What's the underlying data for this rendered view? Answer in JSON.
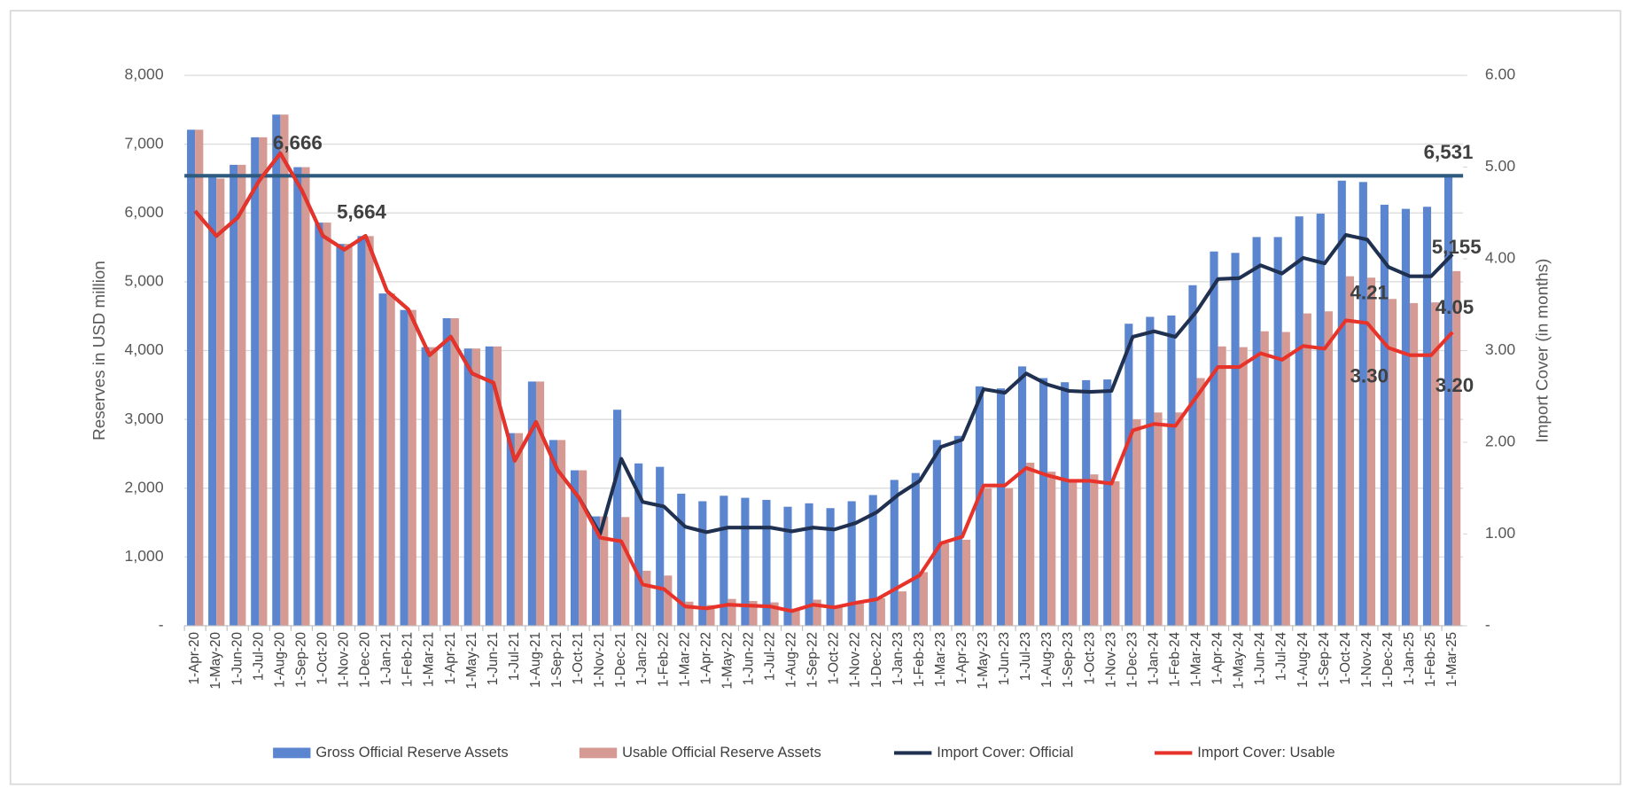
{
  "chart_data": {
    "type": "bar",
    "y_label": "Reserves in USD million",
    "y2_label": "Import Cover (in months)",
    "categories": [
      "1-Apr-20",
      "1-May-20",
      "1-Jun-20",
      "1-Jul-20",
      "1-Aug-20",
      "1-Sep-20",
      "1-Oct-20",
      "1-Nov-20",
      "1-Dec-20",
      "1-Jan-21",
      "1-Feb-21",
      "1-Mar-21",
      "1-Apr-21",
      "1-May-21",
      "1-Jun-21",
      "1-Jul-21",
      "1-Aug-21",
      "1-Sep-21",
      "1-Oct-21",
      "1-Nov-21",
      "1-Dec-21",
      "1-Jan-22",
      "1-Feb-22",
      "1-Mar-22",
      "1-Apr-22",
      "1-May-22",
      "1-Jun-22",
      "1-Jul-22",
      "1-Aug-22",
      "1-Sep-22",
      "1-Oct-22",
      "1-Nov-22",
      "1-Dec-22",
      "1-Jan-23",
      "1-Feb-23",
      "1-Mar-23",
      "1-Apr-23",
      "1-May-23",
      "1-Jun-23",
      "1-Jul-23",
      "1-Aug-23",
      "1-Sep-23",
      "1-Oct-23",
      "1-Nov-23",
      "1-Dec-23",
      "1-Jan-24",
      "1-Feb-24",
      "1-Mar-24",
      "1-Apr-24",
      "1-May-24",
      "1-Jun-24",
      "1-Jul-24",
      "1-Aug-24",
      "1-Sep-24",
      "1-Oct-24",
      "1-Nov-24",
      "1-Dec-24",
      "1-Jan-25",
      "1-Feb-25",
      "1-Mar-25"
    ],
    "series": [
      {
        "name": "Gross Official Reserve Assets",
        "type": "bar",
        "color": "#5b86cf",
        "values": [
          7210,
          6550,
          6700,
          7100,
          7430,
          6666,
          5860,
          5550,
          5664,
          4830,
          4590,
          4050,
          4470,
          4030,
          4060,
          2800,
          3550,
          2700,
          2260,
          1590,
          3140,
          2360,
          2310,
          1920,
          1810,
          1890,
          1860,
          1830,
          1730,
          1780,
          1710,
          1810,
          1900,
          2120,
          2220,
          2700,
          2760,
          3480,
          3450,
          3770,
          3600,
          3540,
          3570,
          3580,
          4390,
          4490,
          4510,
          4950,
          5440,
          5420,
          5650,
          5650,
          5950,
          5990,
          6470,
          6450,
          6120,
          6060,
          6090,
          6531
        ],
        "value_labels": [
          null,
          null,
          null,
          null,
          null,
          "6,666",
          null,
          null,
          "5,664",
          null,
          null,
          null,
          null,
          null,
          null,
          null,
          null,
          null,
          null,
          null,
          null,
          null,
          null,
          null,
          null,
          null,
          null,
          null,
          null,
          null,
          null,
          null,
          null,
          null,
          null,
          null,
          null,
          null,
          null,
          null,
          null,
          null,
          null,
          null,
          null,
          null,
          null,
          null,
          null,
          null,
          null,
          null,
          null,
          null,
          null,
          null,
          null,
          null,
          null,
          "6,531"
        ]
      },
      {
        "name": "Usable Official Reserve Assets",
        "type": "bar",
        "color": "#d49a93",
        "values": [
          7210,
          6500,
          6700,
          7100,
          7430,
          6666,
          5860,
          5550,
          5664,
          4830,
          4590,
          4050,
          4470,
          4030,
          4060,
          2800,
          3550,
          2700,
          2260,
          1590,
          1580,
          800,
          730,
          350,
          300,
          390,
          360,
          340,
          250,
          380,
          300,
          330,
          400,
          500,
          780,
          1200,
          1250,
          2000,
          2000,
          2370,
          2240,
          2100,
          2200,
          2100,
          3000,
          3100,
          3100,
          3600,
          4060,
          4050,
          4280,
          4270,
          4540,
          4570,
          5080,
          5060,
          4750,
          4690,
          4700,
          5155
        ],
        "value_labels": [
          null,
          null,
          null,
          null,
          null,
          null,
          null,
          null,
          null,
          null,
          null,
          null,
          null,
          null,
          null,
          null,
          null,
          null,
          null,
          null,
          null,
          null,
          null,
          null,
          null,
          null,
          null,
          null,
          null,
          null,
          null,
          null,
          null,
          null,
          null,
          null,
          null,
          null,
          null,
          null,
          null,
          null,
          null,
          null,
          null,
          null,
          null,
          null,
          null,
          null,
          null,
          null,
          null,
          null,
          null,
          null,
          null,
          null,
          null,
          "5,155"
        ]
      },
      {
        "name": "Import Cover: Official",
        "type": "line",
        "axis": "y2",
        "color": "#1f3050",
        "values": [
          4.52,
          4.25,
          4.45,
          4.85,
          5.15,
          4.75,
          4.25,
          4.1,
          4.25,
          3.65,
          3.45,
          2.95,
          3.15,
          2.75,
          2.65,
          1.8,
          2.22,
          1.7,
          1.4,
          1.0,
          1.82,
          1.35,
          1.3,
          1.08,
          1.02,
          1.07,
          1.07,
          1.07,
          1.03,
          1.07,
          1.05,
          1.12,
          1.24,
          1.43,
          1.58,
          1.95,
          2.03,
          2.58,
          2.54,
          2.75,
          2.63,
          2.56,
          2.55,
          2.56,
          3.15,
          3.21,
          3.15,
          3.43,
          3.78,
          3.79,
          3.93,
          3.84,
          4.01,
          3.95,
          4.26,
          4.21,
          3.91,
          3.81,
          3.81,
          4.05
        ],
        "value_labels": [
          null,
          null,
          null,
          null,
          null,
          null,
          null,
          null,
          null,
          null,
          null,
          null,
          null,
          null,
          null,
          null,
          null,
          null,
          null,
          null,
          null,
          null,
          null,
          null,
          null,
          null,
          null,
          null,
          null,
          null,
          null,
          null,
          null,
          null,
          null,
          null,
          null,
          null,
          null,
          null,
          null,
          null,
          null,
          null,
          null,
          null,
          null,
          null,
          null,
          null,
          null,
          null,
          null,
          null,
          null,
          "4.21",
          null,
          null,
          null,
          "4.05"
        ]
      },
      {
        "name": "Import Cover: Usable",
        "type": "line",
        "axis": "y2",
        "color": "#e8332a",
        "values": [
          4.52,
          4.25,
          4.45,
          4.85,
          5.15,
          4.75,
          4.25,
          4.1,
          4.25,
          3.65,
          3.45,
          2.95,
          3.15,
          2.75,
          2.65,
          1.8,
          2.22,
          1.7,
          1.4,
          0.96,
          0.92,
          0.45,
          0.4,
          0.21,
          0.19,
          0.23,
          0.22,
          0.21,
          0.16,
          0.23,
          0.2,
          0.25,
          0.29,
          0.42,
          0.55,
          0.9,
          0.97,
          1.53,
          1.53,
          1.72,
          1.64,
          1.58,
          1.58,
          1.55,
          2.13,
          2.2,
          2.18,
          2.5,
          2.82,
          2.82,
          2.97,
          2.9,
          3.05,
          3.02,
          3.33,
          3.3,
          3.03,
          2.95,
          2.95,
          3.2
        ],
        "value_labels": [
          null,
          null,
          null,
          null,
          null,
          null,
          null,
          null,
          null,
          null,
          null,
          null,
          null,
          null,
          null,
          null,
          null,
          null,
          null,
          null,
          null,
          null,
          null,
          null,
          null,
          null,
          null,
          null,
          null,
          null,
          null,
          null,
          null,
          null,
          null,
          null,
          null,
          null,
          null,
          null,
          null,
          null,
          null,
          null,
          null,
          null,
          null,
          null,
          null,
          null,
          null,
          null,
          null,
          null,
          null,
          "3.30",
          null,
          null,
          null,
          "3.20"
        ]
      }
    ],
    "hline": 6540,
    "hline_color": "#2f5a80",
    "ylim": [
      0,
      8000
    ],
    "yticks": [
      {
        "value": 0,
        "label": "-"
      },
      {
        "value": 1000,
        "label": "1,000"
      },
      {
        "value": 2000,
        "label": "2,000"
      },
      {
        "value": 3000,
        "label": "3,000"
      },
      {
        "value": 4000,
        "label": "4,000"
      },
      {
        "value": 5000,
        "label": "5,000"
      },
      {
        "value": 6000,
        "label": "6,000"
      },
      {
        "value": 7000,
        "label": "7,000"
      },
      {
        "value": 8000,
        "label": "8,000"
      }
    ],
    "y2lim": [
      0,
      6
    ],
    "y2ticks": [
      {
        "value": 0,
        "label": "-"
      },
      {
        "value": 1,
        "label": "1.00"
      },
      {
        "value": 2,
        "label": "2.00"
      },
      {
        "value": 3,
        "label": "3.00"
      },
      {
        "value": 4,
        "label": "4.00"
      },
      {
        "value": 5,
        "label": "5.00"
      },
      {
        "value": 6,
        "label": "6.00"
      }
    ],
    "grid": true,
    "legend": "bottom"
  }
}
